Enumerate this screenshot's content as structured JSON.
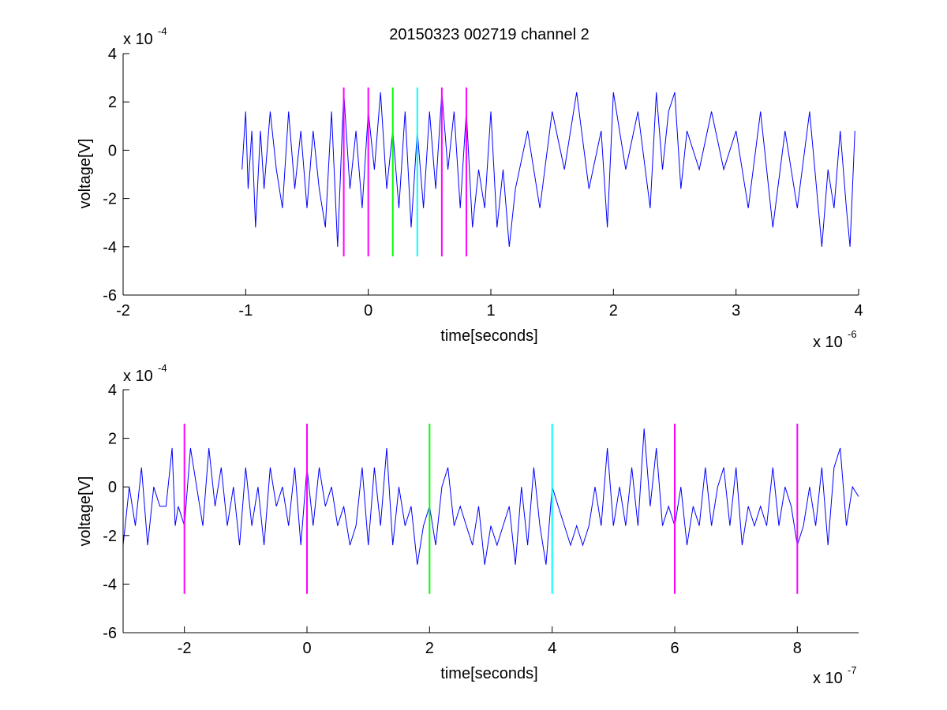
{
  "figure_title": "20150323 002719 channel 2",
  "chart_data": [
    {
      "type": "line",
      "title": "20150323 002719 channel 2",
      "xlabel": "time[seconds]",
      "ylabel": "voltage[V]",
      "x_exponent_label": "x 10",
      "x_exponent": "-6",
      "y_exponent_label": "x 10",
      "y_exponent": "-4",
      "xlim": [
        -2,
        4
      ],
      "ylim": [
        -6,
        4
      ],
      "xticks": [
        -2,
        -1,
        0,
        1,
        2,
        3,
        4
      ],
      "xtick_labels": [
        "-2",
        "-1",
        "0",
        "1",
        "2",
        "3",
        "4"
      ],
      "yticks": [
        -6,
        -4,
        -2,
        0,
        2,
        4
      ],
      "ytick_labels": [
        "-6",
        "-4",
        "-2",
        "0",
        "2",
        "4"
      ],
      "grid": false,
      "series": [
        {
          "color": "#0000ff",
          "x_range": [
            -1.03,
            3.97
          ],
          "style": "noisy trace around 0 to -1.6, values quantized in steps of about 0.8; extremes about 2.4 and -4.0",
          "points": [
            [
              -1.03,
              -0.8
            ],
            [
              -1.0,
              1.6
            ],
            [
              -0.98,
              -1.6
            ],
            [
              -0.95,
              0.8
            ],
            [
              -0.92,
              -3.2
            ],
            [
              -0.88,
              0.8
            ],
            [
              -0.85,
              -1.6
            ],
            [
              -0.8,
              1.6
            ],
            [
              -0.75,
              -0.8
            ],
            [
              -0.7,
              -2.4
            ],
            [
              -0.65,
              1.6
            ],
            [
              -0.6,
              -1.6
            ],
            [
              -0.55,
              0.8
            ],
            [
              -0.5,
              -2.4
            ],
            [
              -0.45,
              0.8
            ],
            [
              -0.4,
              -1.6
            ],
            [
              -0.35,
              -3.2
            ],
            [
              -0.3,
              1.6
            ],
            [
              -0.25,
              -4.0
            ],
            [
              -0.2,
              2.4
            ],
            [
              -0.15,
              -1.6
            ],
            [
              -0.1,
              0.8
            ],
            [
              -0.05,
              -2.4
            ],
            [
              0.0,
              1.6
            ],
            [
              0.05,
              -0.8
            ],
            [
              0.1,
              2.4
            ],
            [
              0.15,
              -1.6
            ],
            [
              0.2,
              0.8
            ],
            [
              0.25,
              -2.4
            ],
            [
              0.3,
              1.6
            ],
            [
              0.35,
              -3.2
            ],
            [
              0.4,
              0.8
            ],
            [
              0.45,
              -2.4
            ],
            [
              0.5,
              1.6
            ],
            [
              0.55,
              -1.6
            ],
            [
              0.6,
              2.4
            ],
            [
              0.65,
              -0.8
            ],
            [
              0.7,
              1.6
            ],
            [
              0.75,
              -2.4
            ],
            [
              0.8,
              1.6
            ],
            [
              0.85,
              -3.2
            ],
            [
              0.9,
              -0.8
            ],
            [
              0.95,
              -2.4
            ],
            [
              1.0,
              1.6
            ],
            [
              1.05,
              -3.2
            ],
            [
              1.1,
              -0.8
            ],
            [
              1.15,
              -4.0
            ],
            [
              1.2,
              -1.6
            ],
            [
              1.3,
              0.8
            ],
            [
              1.4,
              -2.4
            ],
            [
              1.5,
              1.6
            ],
            [
              1.6,
              -0.8
            ],
            [
              1.7,
              2.4
            ],
            [
              1.8,
              -1.6
            ],
            [
              1.9,
              0.8
            ],
            [
              1.95,
              -3.2
            ],
            [
              2.0,
              2.4
            ],
            [
              2.1,
              -0.8
            ],
            [
              2.2,
              1.6
            ],
            [
              2.3,
              -2.4
            ],
            [
              2.35,
              2.4
            ],
            [
              2.4,
              -0.8
            ],
            [
              2.45,
              1.6
            ],
            [
              2.5,
              2.4
            ],
            [
              2.55,
              -1.6
            ],
            [
              2.6,
              0.8
            ],
            [
              2.7,
              -0.8
            ],
            [
              2.8,
              1.6
            ],
            [
              2.9,
              -0.8
            ],
            [
              3.0,
              0.8
            ],
            [
              3.1,
              -2.4
            ],
            [
              3.2,
              1.6
            ],
            [
              3.3,
              -3.2
            ],
            [
              3.4,
              0.8
            ],
            [
              3.5,
              -2.4
            ],
            [
              3.6,
              1.6
            ],
            [
              3.7,
              -4.0
            ],
            [
              3.75,
              -0.8
            ],
            [
              3.8,
              -2.4
            ],
            [
              3.85,
              0.8
            ],
            [
              3.9,
              -2.4
            ],
            [
              3.93,
              -4.0
            ],
            [
              3.95,
              -1.6
            ],
            [
              3.97,
              0.8
            ]
          ]
        }
      ],
      "vertical_markers": [
        {
          "x": -0.2,
          "y_range": [
            -4.4,
            2.6
          ],
          "color": "#ff00ff"
        },
        {
          "x": 0.0,
          "y_range": [
            -4.4,
            2.6
          ],
          "color": "#ff00ff"
        },
        {
          "x": 0.2,
          "y_range": [
            -4.4,
            2.6
          ],
          "color": "#00ff00"
        },
        {
          "x": 0.4,
          "y_range": [
            -4.4,
            2.6
          ],
          "color": "#00ffff"
        },
        {
          "x": 0.6,
          "y_range": [
            -4.4,
            2.6
          ],
          "color": "#ff00ff"
        },
        {
          "x": 0.8,
          "y_range": [
            -4.4,
            2.6
          ],
          "color": "#ff00ff"
        }
      ]
    },
    {
      "type": "line",
      "title": "",
      "xlabel": "time[seconds]",
      "ylabel": "voltage[V]",
      "x_exponent_label": "x 10",
      "x_exponent": "-7",
      "y_exponent_label": "x 10",
      "y_exponent": "-4",
      "xlim": [
        -3,
        9
      ],
      "ylim": [
        -6,
        4
      ],
      "xticks": [
        -2,
        0,
        2,
        4,
        6,
        8
      ],
      "xtick_labels": [
        "-2",
        "0",
        "2",
        "4",
        "6",
        "8"
      ],
      "yticks": [
        -6,
        -4,
        -2,
        0,
        2,
        4
      ],
      "ytick_labels": [
        "-6",
        "-4",
        "-2",
        "0",
        "2",
        "4"
      ],
      "grid": false,
      "series": [
        {
          "color": "#0000ff",
          "points": [
            [
              -3.0,
              -2.4
            ],
            [
              -2.9,
              0.0
            ],
            [
              -2.8,
              -1.6
            ],
            [
              -2.7,
              0.8
            ],
            [
              -2.6,
              -2.4
            ],
            [
              -2.5,
              0.0
            ],
            [
              -2.4,
              -0.8
            ],
            [
              -2.3,
              -0.8
            ],
            [
              -2.2,
              1.6
            ],
            [
              -2.15,
              -1.6
            ],
            [
              -2.1,
              -0.8
            ],
            [
              -2.0,
              -1.6
            ],
            [
              -1.9,
              1.6
            ],
            [
              -1.8,
              0.0
            ],
            [
              -1.7,
              -1.6
            ],
            [
              -1.6,
              1.6
            ],
            [
              -1.5,
              -0.8
            ],
            [
              -1.4,
              0.8
            ],
            [
              -1.3,
              -1.6
            ],
            [
              -1.2,
              0.0
            ],
            [
              -1.1,
              -2.4
            ],
            [
              -1.0,
              0.8
            ],
            [
              -0.9,
              -1.6
            ],
            [
              -0.8,
              0.0
            ],
            [
              -0.7,
              -2.4
            ],
            [
              -0.6,
              0.8
            ],
            [
              -0.5,
              -0.8
            ],
            [
              -0.4,
              0.0
            ],
            [
              -0.3,
              -1.6
            ],
            [
              -0.2,
              0.8
            ],
            [
              -0.1,
              -2.4
            ],
            [
              0.0,
              0.8
            ],
            [
              0.1,
              -1.6
            ],
            [
              0.2,
              0.8
            ],
            [
              0.3,
              -0.8
            ],
            [
              0.4,
              0.0
            ],
            [
              0.5,
              -1.6
            ],
            [
              0.6,
              -0.8
            ],
            [
              0.7,
              -2.4
            ],
            [
              0.8,
              -1.6
            ],
            [
              0.9,
              0.8
            ],
            [
              1.0,
              -2.4
            ],
            [
              1.1,
              0.8
            ],
            [
              1.2,
              -1.6
            ],
            [
              1.3,
              1.6
            ],
            [
              1.4,
              -2.4
            ],
            [
              1.5,
              0.0
            ],
            [
              1.6,
              -1.6
            ],
            [
              1.7,
              -0.8
            ],
            [
              1.8,
              -3.2
            ],
            [
              1.9,
              -1.6
            ],
            [
              2.0,
              -0.8
            ],
            [
              2.1,
              -2.4
            ],
            [
              2.2,
              0.0
            ],
            [
              2.3,
              0.8
            ],
            [
              2.4,
              -1.6
            ],
            [
              2.5,
              -0.8
            ],
            [
              2.6,
              -1.6
            ],
            [
              2.7,
              -2.4
            ],
            [
              2.8,
              -0.8
            ],
            [
              2.9,
              -3.2
            ],
            [
              3.0,
              -1.6
            ],
            [
              3.1,
              -2.4
            ],
            [
              3.2,
              -1.6
            ],
            [
              3.3,
              -0.8
            ],
            [
              3.4,
              -3.2
            ],
            [
              3.5,
              0.0
            ],
            [
              3.6,
              -2.4
            ],
            [
              3.7,
              0.8
            ],
            [
              3.8,
              -1.6
            ],
            [
              3.9,
              -3.2
            ],
            [
              4.0,
              0.0
            ],
            [
              4.1,
              -0.8
            ],
            [
              4.2,
              -1.6
            ],
            [
              4.3,
              -2.4
            ],
            [
              4.4,
              -1.6
            ],
            [
              4.5,
              -2.4
            ],
            [
              4.6,
              -1.6
            ],
            [
              4.7,
              0.0
            ],
            [
              4.8,
              -1.6
            ],
            [
              4.9,
              1.6
            ],
            [
              5.0,
              -1.6
            ],
            [
              5.1,
              0.0
            ],
            [
              5.2,
              -1.6
            ],
            [
              5.3,
              0.8
            ],
            [
              5.4,
              -1.6
            ],
            [
              5.5,
              2.4
            ],
            [
              5.6,
              -0.8
            ],
            [
              5.7,
              1.6
            ],
            [
              5.8,
              -1.6
            ],
            [
              5.9,
              -0.8
            ],
            [
              6.0,
              -1.6
            ],
            [
              6.1,
              0.0
            ],
            [
              6.2,
              -2.4
            ],
            [
              6.3,
              -0.8
            ],
            [
              6.4,
              -1.6
            ],
            [
              6.5,
              0.8
            ],
            [
              6.6,
              -1.6
            ],
            [
              6.7,
              0.0
            ],
            [
              6.8,
              0.8
            ],
            [
              6.9,
              -1.6
            ],
            [
              7.0,
              0.8
            ],
            [
              7.1,
              -2.4
            ],
            [
              7.2,
              -0.8
            ],
            [
              7.3,
              -1.6
            ],
            [
              7.4,
              -0.8
            ],
            [
              7.5,
              -1.6
            ],
            [
              7.6,
              0.8
            ],
            [
              7.7,
              -1.6
            ],
            [
              7.8,
              0.0
            ],
            [
              7.9,
              -0.8
            ],
            [
              8.0,
              -2.4
            ],
            [
              8.1,
              -1.6
            ],
            [
              8.2,
              0.0
            ],
            [
              8.3,
              -1.6
            ],
            [
              8.4,
              0.8
            ],
            [
              8.5,
              -2.4
            ],
            [
              8.6,
              0.8
            ],
            [
              8.7,
              1.6
            ],
            [
              8.8,
              -1.6
            ],
            [
              8.9,
              0.0
            ],
            [
              9.0,
              -0.4
            ]
          ]
        }
      ],
      "vertical_markers": [
        {
          "x": -2,
          "y_range": [
            -4.4,
            2.6
          ],
          "color": "#ff00ff"
        },
        {
          "x": 0,
          "y_range": [
            -4.4,
            2.6
          ],
          "color": "#ff00ff"
        },
        {
          "x": 2,
          "y_range": [
            -4.4,
            2.6
          ],
          "color": "#00ff00"
        },
        {
          "x": 4,
          "y_range": [
            -4.4,
            2.6
          ],
          "color": "#00ffff"
        },
        {
          "x": 6,
          "y_range": [
            -4.4,
            2.6
          ],
          "color": "#ff00ff"
        },
        {
          "x": 8,
          "y_range": [
            -4.4,
            2.6
          ],
          "color": "#ff00ff"
        }
      ]
    }
  ]
}
